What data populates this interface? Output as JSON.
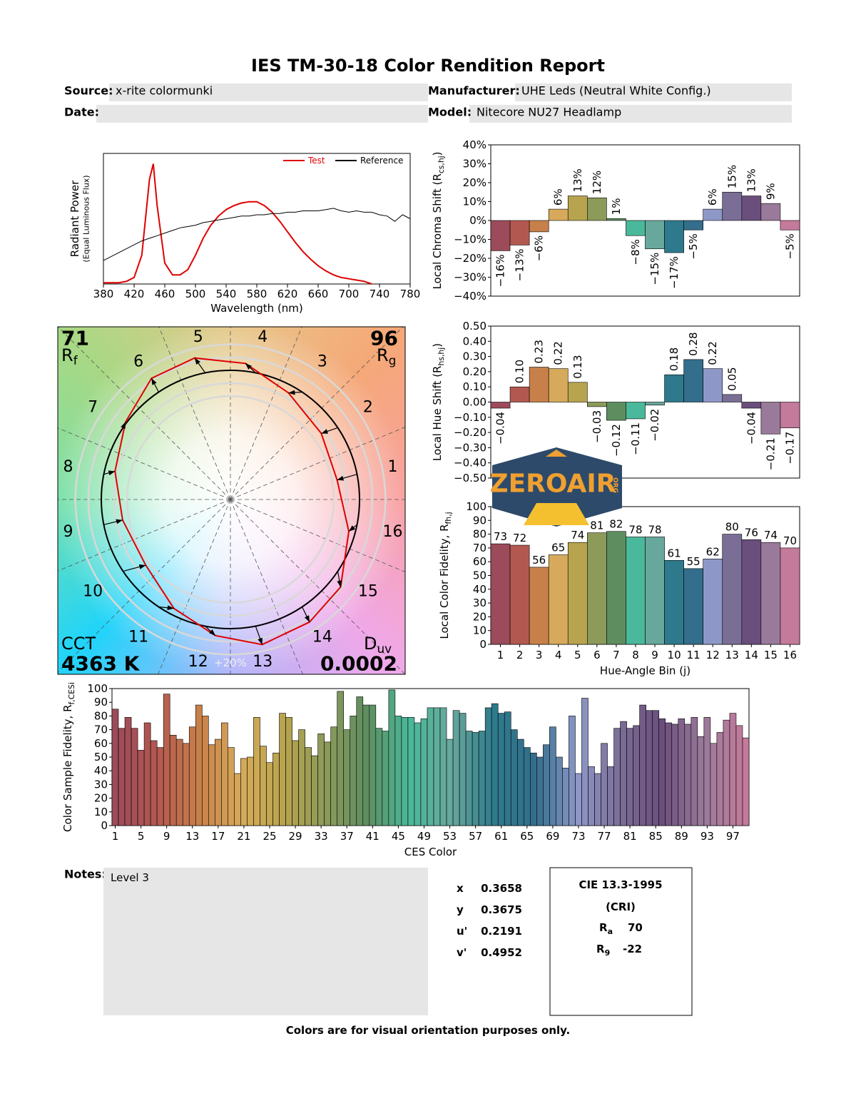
{
  "header": {
    "title": "IES TM-30-18 Color Rendition Report",
    "source_label": "Source:",
    "source": "x-rite colormunki",
    "manufacturer_label": "Manufacturer:",
    "manufacturer": "UHE Leds (Neutral White Config.)",
    "date_label": "Date:",
    "model_label": "Model:",
    "model": "Nitecore NU27 Headlamp"
  },
  "hue_bin_colors": [
    "#9b4b5a",
    "#b35850",
    "#c8804a",
    "#d6aa5a",
    "#b8a44e",
    "#8c9a5a",
    "#5e8e60",
    "#4ab89a",
    "#68a89c",
    "#2e7a8c",
    "#336e8c",
    "#8e98c8",
    "#7a6e96",
    "#6a4e7c",
    "#9a7a9a",
    "#c47a9a"
  ],
  "chart_data": [
    {
      "type": "line",
      "xlabel": "Wavelength (nm)",
      "ylabel": [
        "Radiant Power",
        "(Equal Luminous Flux)"
      ],
      "x": [
        380,
        390,
        400,
        410,
        420,
        430,
        440,
        445,
        450,
        460,
        470,
        480,
        490,
        500,
        510,
        520,
        530,
        540,
        550,
        560,
        570,
        580,
        590,
        600,
        610,
        620,
        630,
        640,
        650,
        660,
        670,
        680,
        690,
        700,
        710,
        720,
        730,
        740,
        750,
        760,
        770,
        780
      ],
      "series": [
        {
          "name": "Test",
          "color": "#e00000",
          "values": [
            0.01,
            0.01,
            0.01,
            0.02,
            0.05,
            0.22,
            0.8,
            0.92,
            0.6,
            0.16,
            0.07,
            0.07,
            0.11,
            0.22,
            0.35,
            0.45,
            0.52,
            0.57,
            0.6,
            0.62,
            0.63,
            0.63,
            0.6,
            0.55,
            0.48,
            0.4,
            0.32,
            0.25,
            0.19,
            0.14,
            0.1,
            0.07,
            0.05,
            0.04,
            0.03,
            0.02,
            0,
            null,
            null,
            null,
            null,
            null
          ]
        },
        {
          "name": "Reference",
          "color": "#000000",
          "values": [
            0.18,
            0.21,
            0.24,
            0.27,
            0.3,
            0.33,
            0.35,
            0.36,
            0.37,
            0.39,
            0.41,
            0.43,
            0.44,
            0.45,
            0.47,
            0.48,
            0.49,
            0.5,
            0.51,
            0.52,
            0.52,
            0.53,
            0.53,
            0.54,
            0.54,
            0.55,
            0.55,
            0.56,
            0.56,
            0.56,
            0.57,
            0.58,
            0.56,
            0.55,
            0.56,
            0.55,
            0.55,
            0.53,
            0.52,
            0.48,
            0.53,
            0.5
          ]
        }
      ],
      "xlim": [
        380,
        780
      ],
      "xticks": [
        380,
        420,
        460,
        500,
        540,
        580,
        620,
        660,
        700,
        740,
        780
      ],
      "ylim": [
        0,
        1
      ],
      "legend": "upper right"
    },
    {
      "type": "vector",
      "categories": [
        1,
        2,
        3,
        4,
        5,
        6,
        7,
        8,
        9,
        10,
        11,
        12,
        13,
        14,
        15,
        16
      ],
      "rf": {
        "value": 71,
        "symbol": "R",
        "subscript": "f"
      },
      "rg": {
        "value": 96,
        "symbol": "R",
        "subscript": "g"
      },
      "cct": {
        "name": "CCT",
        "value": "4363 K"
      },
      "duv": {
        "value": 0.0002,
        "symbol": "D",
        "subscript": "uv"
      },
      "annotation": "+20%"
    },
    {
      "type": "bar",
      "ylabel": [
        "Local Chroma Shift (R",
        "cs,hj",
        ")"
      ],
      "values": [
        -16,
        -13,
        -6,
        6,
        13,
        12,
        1,
        -8,
        -15,
        -17,
        -5,
        6,
        15,
        13,
        9,
        -5
      ],
      "value_labels": [
        "−16%",
        "−13%",
        "−6%",
        "6%",
        "13%",
        "12%",
        "1%",
        "−8%",
        "−15%",
        "−17%",
        "−5%",
        "6%",
        "15%",
        "13%",
        "9%",
        "−5%"
      ],
      "ylim": [
        -40,
        40
      ],
      "yticks": [
        {
          "value": -40,
          "label": "−40%"
        },
        {
          "value": -30,
          "label": "−30%"
        },
        {
          "value": -20,
          "label": "−20%"
        },
        {
          "value": -10,
          "label": "−10%"
        },
        {
          "value": 0,
          "label": "0%"
        },
        {
          "value": 10,
          "label": "10%"
        },
        {
          "value": 20,
          "label": "20%"
        },
        {
          "value": 30,
          "label": "30%"
        },
        {
          "value": 40,
          "label": "40%"
        }
      ]
    },
    {
      "type": "bar",
      "ylabel": [
        "Local Hue Shift (R",
        "hs,hj",
        ")"
      ],
      "values": [
        -0.04,
        0.1,
        0.23,
        0.22,
        0.13,
        -0.03,
        -0.12,
        -0.11,
        -0.02,
        0.18,
        0.28,
        0.22,
        0.05,
        -0.04,
        -0.21,
        -0.17
      ],
      "value_labels": [
        "−0.04",
        "0.10",
        "0.23",
        "0.22",
        "0.13",
        "−0.03",
        "−0.12",
        "−0.11",
        "−0.02",
        "0.18",
        "0.28",
        "0.22",
        "0.05",
        "−0.04",
        "−0.21",
        "−0.17"
      ],
      "ylim": [
        -0.5,
        0.5
      ],
      "yticks": [
        {
          "value": -0.5,
          "label": "−0.50"
        },
        {
          "value": -0.4,
          "label": "−0.40"
        },
        {
          "value": -0.3,
          "label": "−0.30"
        },
        {
          "value": -0.2,
          "label": "−0.20"
        },
        {
          "value": -0.1,
          "label": "−0.10"
        },
        {
          "value": 0,
          "label": "0.00"
        },
        {
          "value": 0.1,
          "label": "0.10"
        },
        {
          "value": 0.2,
          "label": "0.20"
        },
        {
          "value": 0.3,
          "label": "0.30"
        },
        {
          "value": 0.4,
          "label": "0.40"
        },
        {
          "value": 0.5,
          "label": "0.50"
        }
      ]
    },
    {
      "type": "bar",
      "ylabel": [
        "Local Color Fidelity, R",
        "fh,j"
      ],
      "xlabel": "Hue-Angle Bin (j)",
      "categories": [
        1,
        2,
        3,
        4,
        5,
        6,
        7,
        8,
        9,
        10,
        11,
        12,
        13,
        14,
        15,
        16
      ],
      "values": [
        73,
        72,
        56,
        65,
        74,
        81,
        82,
        78,
        78,
        61,
        55,
        62,
        80,
        76,
        74,
        70
      ],
      "ylim": [
        0,
        100
      ],
      "yticks": [
        0,
        10,
        20,
        30,
        40,
        50,
        60,
        70,
        80,
        90,
        100
      ]
    },
    {
      "type": "bar",
      "ylabel": [
        "Color Sample Fidelity, R",
        "f,CESi"
      ],
      "xlabel": "CES Color",
      "categories": [
        1,
        null,
        null,
        null,
        5,
        null,
        null,
        null,
        9,
        null,
        null,
        null,
        13,
        null,
        null,
        null,
        17,
        null,
        null,
        null,
        21,
        null,
        null,
        null,
        25,
        null,
        null,
        null,
        29,
        null,
        null,
        null,
        33,
        null,
        null,
        null,
        37,
        null,
        null,
        null,
        41,
        null,
        null,
        null,
        45,
        null,
        null,
        null,
        49,
        null,
        null,
        null,
        53,
        null,
        null,
        null,
        57,
        null,
        null,
        null,
        61,
        null,
        null,
        null,
        65,
        null,
        null,
        null,
        69,
        null,
        null,
        null,
        73,
        null,
        null,
        null,
        77,
        null,
        null,
        null,
        81,
        null,
        null,
        null,
        85,
        null,
        null,
        null,
        89,
        null,
        null,
        null,
        93,
        null,
        null,
        null,
        97,
        null,
        null
      ],
      "values": [
        85,
        71,
        79,
        71,
        55,
        75,
        62,
        57,
        96,
        66,
        63,
        60,
        72,
        88,
        80,
        59,
        63,
        75,
        57,
        38,
        49,
        50,
        79,
        58,
        46,
        53,
        82,
        79,
        62,
        70,
        57,
        51,
        67,
        61,
        72,
        98,
        70,
        80,
        94,
        88,
        88,
        71,
        69,
        99,
        80,
        79,
        79,
        75,
        78,
        86,
        86,
        86,
        63,
        84,
        82,
        69,
        68,
        69,
        86,
        89,
        82,
        83,
        70,
        63,
        57,
        53,
        50,
        59,
        72,
        50,
        42,
        80,
        38,
        93,
        43,
        38,
        60,
        43,
        71,
        76,
        71,
        73,
        88,
        84,
        84,
        78,
        75,
        74,
        78,
        74,
        79,
        65,
        79,
        60,
        68,
        77,
        82,
        73,
        64
      ],
      "ylim": [
        0,
        100
      ],
      "yticks": [
        0,
        10,
        20,
        30,
        40,
        50,
        60,
        70,
        80,
        90,
        100
      ]
    }
  ],
  "watermark": {
    "text": "ZEROAIR",
    "sub": "ORG"
  },
  "notes": {
    "label": "Notes:",
    "text": "Level 3"
  },
  "chromaticity": [
    {
      "label": "x",
      "value": 0.3658
    },
    {
      "label": "y",
      "value": 0.3675
    },
    {
      "label": "u'",
      "value": 0.2191
    },
    {
      "label": "v'",
      "value": 0.4952
    }
  ],
  "cri": {
    "title": "CIE 13.3-1995",
    "subtitle": "(CRI)",
    "ra": {
      "symbol": "R",
      "subscript": "a",
      "value": 70
    },
    "r9": {
      "symbol": "R",
      "subscript": "9",
      "value": -22
    }
  },
  "footer": "Colors are for visual orientation purposes only."
}
